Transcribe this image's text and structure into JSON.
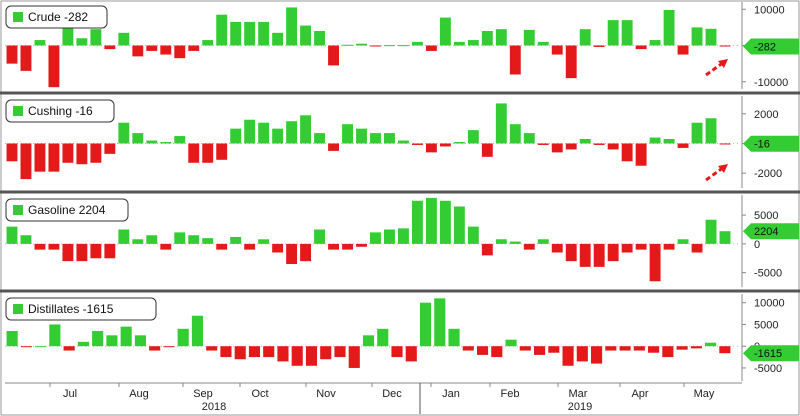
{
  "colors": {
    "positive": "#33cc33",
    "negative": "#e41a1a",
    "tag": "#33cc33",
    "arrow": "#e41a1a",
    "divider": "#555555",
    "grid": "#bbbbbb"
  },
  "x_axis": {
    "months": [
      "Jul",
      "Aug",
      "Sep",
      "Oct",
      "Nov",
      "Dec",
      "Jan",
      "Feb",
      "Mar",
      "Apr",
      "May"
    ],
    "years": [
      "2018",
      "2019"
    ]
  },
  "chart_data": [
    {
      "type": "bar",
      "legend": "Crude -282",
      "last_value_label": "-282",
      "arrow": true,
      "ticks": [
        10000,
        0,
        -10000
      ],
      "tick_labels": [
        "10000",
        "0",
        "-10000"
      ],
      "ylim": [
        -12000,
        12000
      ],
      "values": [
        -5000,
        -7000,
        1500,
        -11500,
        8500,
        2000,
        4500,
        -1000,
        3500,
        -3000,
        -1500,
        -2500,
        -3500,
        -1500,
        1500,
        8500,
        6500,
        6500,
        6500,
        3500,
        10500,
        5500,
        4000,
        -5500,
        200,
        500,
        -200,
        100,
        100,
        1000,
        -1500,
        7700,
        1000,
        1500,
        4000,
        4500,
        -8000,
        4300,
        1000,
        -2500,
        -9000,
        4500,
        -400,
        7000,
        7000,
        -1000,
        1500,
        9800,
        -2500,
        5000,
        4600,
        -282
      ]
    },
    {
      "type": "bar",
      "legend": "Cushing -16",
      "last_value_label": "-16",
      "arrow": true,
      "ticks": [
        2000,
        0,
        -2000
      ],
      "tick_labels": [
        "2000",
        "0",
        "-2000"
      ],
      "ylim": [
        -3000,
        3200
      ],
      "values": [
        -1200,
        -2400,
        -1900,
        -1900,
        -1300,
        -1400,
        -1300,
        -700,
        1400,
        700,
        200,
        100,
        500,
        -1300,
        -1300,
        -1100,
        1000,
        1600,
        1400,
        1000,
        1500,
        1900,
        700,
        -500,
        1300,
        1000,
        700,
        700,
        200,
        -100,
        -600,
        -200,
        100,
        900,
        -900,
        2700,
        1300,
        700,
        -100,
        -600,
        -400,
        300,
        -100,
        -400,
        -1200,
        -1500,
        400,
        300,
        -300,
        1400,
        1700,
        -16
      ]
    },
    {
      "type": "bar",
      "legend": "Gasoline 2204",
      "last_value_label": "2204",
      "arrow": false,
      "ticks": [
        5000,
        0,
        -5000
      ],
      "tick_labels": [
        "5000",
        "0",
        "-5000"
      ],
      "ylim": [
        -7500,
        8500
      ],
      "values": [
        3000,
        1500,
        -1000,
        -1000,
        -3000,
        -3000,
        -2500,
        -2500,
        2500,
        800,
        1500,
        -1000,
        2000,
        1500,
        1000,
        -1000,
        1200,
        -1000,
        800,
        -1500,
        -3500,
        -3000,
        2500,
        -1000,
        -1000,
        -500,
        2000,
        2500,
        2700,
        7500,
        8000,
        7500,
        6500,
        3000,
        -2000,
        800,
        400,
        -1000,
        800,
        -1500,
        -3000,
        -4000,
        -4000,
        -3000,
        -1500,
        -1000,
        -6500,
        -1000,
        800,
        -1500,
        4200,
        2204
      ]
    },
    {
      "type": "bar",
      "legend": "Distillates -1615",
      "last_value_label": "-1615",
      "arrow": false,
      "ticks": [
        10000,
        5000,
        0,
        -5000
      ],
      "tick_labels": [
        "10000",
        "5000",
        "0",
        "-5000"
      ],
      "ylim": [
        -8000,
        12000
      ],
      "values": [
        3500,
        -200,
        0,
        5000,
        -1000,
        1000,
        3500,
        2500,
        4500,
        2500,
        -1000,
        -200,
        4000,
        7000,
        -1000,
        -2500,
        -3000,
        -2500,
        -2500,
        -3500,
        -4500,
        -4500,
        -3000,
        -2500,
        -5000,
        2500,
        4000,
        -2500,
        -3500,
        10000,
        11000,
        4000,
        -1000,
        -2000,
        -2500,
        1500,
        -1000,
        -2000,
        -1500,
        -4500,
        -3500,
        -4000,
        -1000,
        -1000,
        -1000,
        -1500,
        -2500,
        -800,
        -500,
        800,
        -1615
      ]
    }
  ]
}
